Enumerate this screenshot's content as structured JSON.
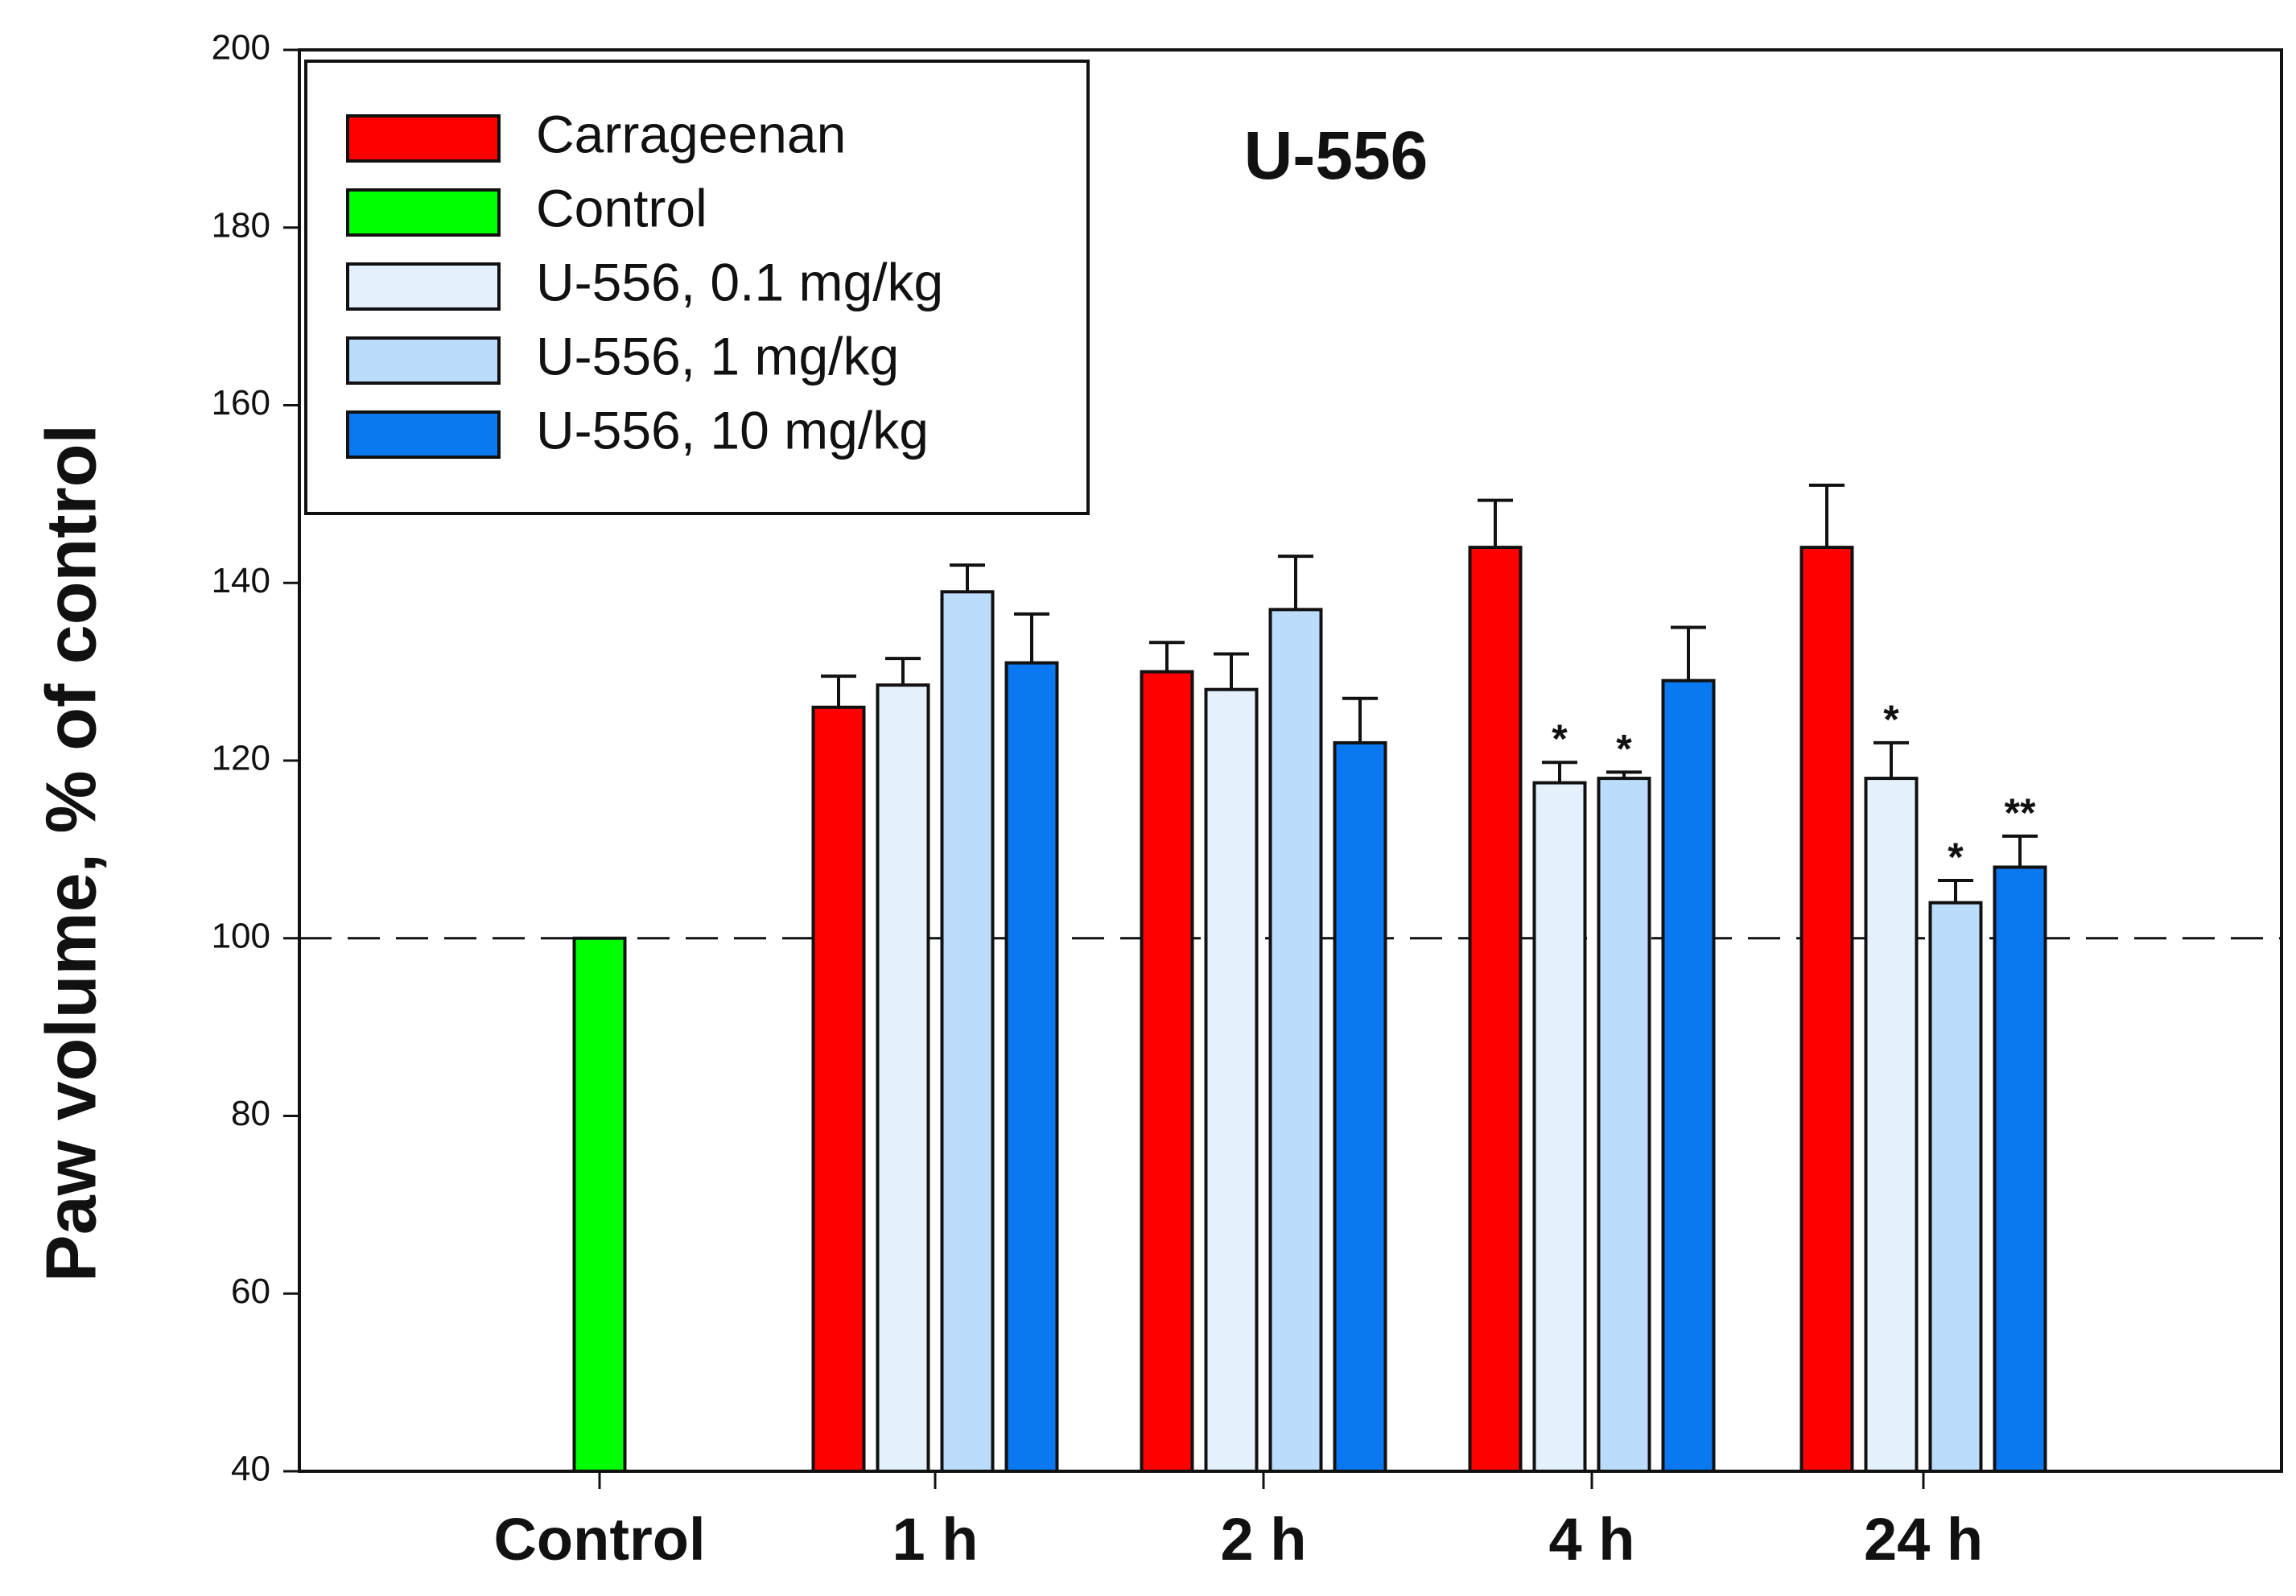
{
  "chart_data": {
    "type": "bar",
    "title": "U-556",
    "ylabel": "Paw volume, % of control",
    "xlabel": "",
    "ylim": [
      40,
      200
    ],
    "yticks": [
      40,
      60,
      80,
      100,
      120,
      140,
      160,
      180,
      200
    ],
    "yticks_text": [
      "40",
      "60",
      "80",
      "100",
      "120",
      "140",
      "160",
      "180",
      "200"
    ],
    "reference_line": 100,
    "legend_position": "top-left",
    "colors": {
      "Carrageenan": "#ff0000",
      "Control": "#00ff00",
      "U-556, 0.1 mg/kg": "#e4f1fc",
      "U-556, 1 mg/kg": "#bcdcfb",
      "U-556, 10 mg/kg": "#0a78f0"
    },
    "legend": [
      "Carrageenan",
      "Control",
      "U-556, 0.1 mg/kg",
      "U-556, 1 mg/kg",
      "U-556, 10 mg/kg"
    ],
    "groups": [
      {
        "label": "Control",
        "bars": [
          {
            "series": "Control",
            "value": 100,
            "error": null,
            "sig": ""
          }
        ]
      },
      {
        "label": "1 h",
        "bars": [
          {
            "series": "Carrageenan",
            "value": 126,
            "error": 3.5,
            "sig": ""
          },
          {
            "series": "U-556, 0.1 mg/kg",
            "value": 128.5,
            "error": 3,
            "sig": ""
          },
          {
            "series": "U-556, 1 mg/kg",
            "value": 139,
            "error": 3,
            "sig": ""
          },
          {
            "series": "U-556, 10 mg/kg",
            "value": 131,
            "error": 5.5,
            "sig": ""
          }
        ]
      },
      {
        "label": "2 h",
        "bars": [
          {
            "series": "Carrageenan",
            "value": 130,
            "error": 3.3,
            "sig": ""
          },
          {
            "series": "U-556, 0.1 mg/kg",
            "value": 128,
            "error": 4,
            "sig": ""
          },
          {
            "series": "U-556, 1 mg/kg",
            "value": 137,
            "error": 6,
            "sig": ""
          },
          {
            "series": "U-556, 10 mg/kg",
            "value": 122,
            "error": 5,
            "sig": ""
          }
        ]
      },
      {
        "label": "4 h",
        "bars": [
          {
            "series": "Carrageenan",
            "value": 144,
            "error": 5.3,
            "sig": ""
          },
          {
            "series": "U-556, 0.1 mg/kg",
            "value": 117.5,
            "error": 2.3,
            "sig": "*"
          },
          {
            "series": "U-556, 1 mg/kg",
            "value": 118,
            "error": 0.7,
            "sig": "*"
          },
          {
            "series": "U-556, 10 mg/kg",
            "value": 129,
            "error": 6,
            "sig": ""
          }
        ]
      },
      {
        "label": "24 h",
        "bars": [
          {
            "series": "Carrageenan",
            "value": 144,
            "error": 7,
            "sig": ""
          },
          {
            "series": "U-556, 0.1 mg/kg",
            "value": 118,
            "error": 4,
            "sig": "*"
          },
          {
            "series": "U-556, 1 mg/kg",
            "value": 104,
            "error": 2.5,
            "sig": "*"
          },
          {
            "series": "U-556, 10 mg/kg",
            "value": 108,
            "error": 3.5,
            "sig": "**"
          }
        ]
      }
    ]
  }
}
